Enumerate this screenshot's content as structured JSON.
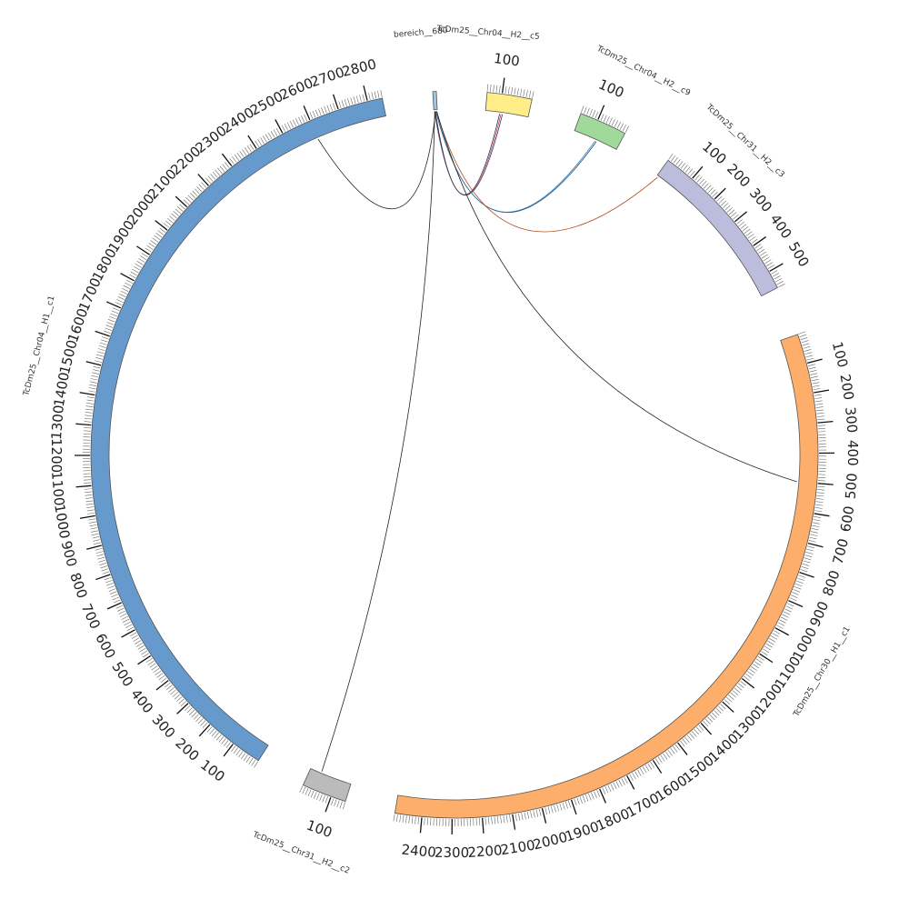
{
  "chart_data": {
    "type": "circos",
    "title": "",
    "segments": [
      {
        "id": "TcDm25__Chr04__H1__c1",
        "label": "TcDm25__Chr04__H1__c1",
        "length": 2850,
        "color": "#6699cc",
        "tick_labels": [
          "100",
          "200",
          "300",
          "400",
          "500",
          "600",
          "700",
          "800",
          "900",
          "1000",
          "1100",
          "1200",
          "1300",
          "1400",
          "1500",
          "1600",
          "1700",
          "1800",
          "1900",
          "2000",
          "2100",
          "2200",
          "2300",
          "2400",
          "2500",
          "2600",
          "2700",
          "2800"
        ]
      },
      {
        "id": "bereich_680",
        "label": "bereich__680",
        "length": 12,
        "color": "#9ecae1",
        "tick_labels": []
      },
      {
        "id": "TcDm25__Chr04__H2__c5",
        "label": "TcDm25__Chr04__H2__c5",
        "length": 150,
        "color": "#ffee88",
        "tick_labels": [
          "100"
        ]
      },
      {
        "id": "TcDm25__Chr04__H2__c9",
        "label": "TcDm25__Chr04__H2__c9",
        "length": 160,
        "color": "#a1d99b",
        "tick_labels": [
          "100"
        ]
      },
      {
        "id": "TcDm25__Chr31__H2__c3",
        "label": "TcDm25__Chr31__H2__c3",
        "length": 560,
        "color": "#bcbddc",
        "tick_labels": [
          "100",
          "200",
          "300",
          "400",
          "500"
        ]
      },
      {
        "id": "TcDm25__Chr30__H1__c1",
        "label": "TcDm25__Chr30__H1__c1",
        "length": 2490,
        "color": "#fdae6b",
        "tick_labels": [
          "100",
          "200",
          "300",
          "400",
          "500",
          "600",
          "700",
          "800",
          "900",
          "1000",
          "1100",
          "1200",
          "1300",
          "1400",
          "1500",
          "1600",
          "1700",
          "1800",
          "1900",
          "2000",
          "2100",
          "2200",
          "2300",
          "2400"
        ]
      },
      {
        "id": "TcDm25__Chr31__H2__c2",
        "label": "TcDm25__Chr31__H2__c2",
        "length": 150,
        "color": "#bbbbbb",
        "tick_labels": [
          "100"
        ]
      }
    ],
    "links": [
      {
        "source": "TcDm25__Chr04__H1__c1",
        "source_pos": 2600,
        "target": "bereich_680",
        "target_pos": 6,
        "color": "#222222"
      },
      {
        "source": "bereich_680",
        "source_pos": 2,
        "target": "TcDm25__Chr04__H2__c5",
        "target_pos": 90,
        "color": "#3a3a55"
      },
      {
        "source": "bereich_680",
        "source_pos": 4,
        "target": "TcDm25__Chr04__H2__c5",
        "target_pos": 95,
        "color": "#cc4466"
      },
      {
        "source": "bereich_680",
        "source_pos": 5,
        "target": "TcDm25__Chr04__H2__c5",
        "target_pos": 100,
        "color": "#223355"
      },
      {
        "source": "bereich_680",
        "source_pos": 7,
        "target": "TcDm25__Chr04__H2__c9",
        "target_pos": 75,
        "color": "#1f4e79"
      },
      {
        "source": "bereich_680",
        "source_pos": 8,
        "target": "TcDm25__Chr04__H2__c9",
        "target_pos": 80,
        "color": "#3377aa"
      },
      {
        "source": "bereich_680",
        "source_pos": 9,
        "target": "TcDm25__Chr31__H2__c3",
        "target_pos": 5,
        "color": "#b34a1a"
      },
      {
        "source": "bereich_680",
        "source_pos": 10,
        "target": "TcDm25__Chr30__H1__c1",
        "target_pos": 500,
        "color": "#222222"
      },
      {
        "source": "bereich_680",
        "source_pos": 3,
        "target": "TcDm25__Chr31__H2__c2",
        "target_pos": 40,
        "color": "#222222"
      }
    ]
  }
}
